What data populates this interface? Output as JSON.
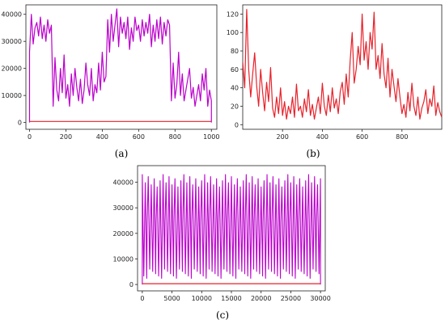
{
  "chart_data": [
    {
      "type": "line",
      "caption": "(a)",
      "xlim": [
        -20,
        1030
      ],
      "ylim": [
        -2500,
        43500
      ],
      "xticks": [
        0,
        200,
        400,
        600,
        800,
        1000
      ],
      "xtick_labels": [
        "0",
        "200",
        "400",
        "600",
        "800",
        "1000"
      ],
      "yticks": [
        0,
        10000,
        20000,
        30000,
        40000
      ],
      "ytick_labels": [
        "0",
        "10000",
        "20000",
        "30000",
        "40000"
      ],
      "grid": false,
      "colors": {
        "main": "#bb00cc",
        "baseline": "#e8212a"
      },
      "series": [
        {
          "color": "#bb00cc",
          "x": [
            0,
            10,
            20,
            30,
            40,
            50,
            60,
            70,
            80,
            90,
            100,
            110,
            120,
            130,
            140,
            150,
            160,
            170,
            180,
            190,
            200,
            210,
            220,
            230,
            240,
            250,
            260,
            270,
            280,
            290,
            300,
            310,
            320,
            330,
            340,
            350,
            360,
            370,
            380,
            390,
            400,
            410,
            420,
            430,
            440,
            450,
            460,
            470,
            480,
            490,
            500,
            510,
            520,
            530,
            540,
            550,
            560,
            570,
            580,
            590,
            600,
            610,
            620,
            630,
            640,
            650,
            660,
            670,
            680,
            690,
            700,
            710,
            720,
            730,
            740,
            750,
            760,
            770,
            780,
            790,
            800,
            810,
            820,
            830,
            840,
            850,
            860,
            870,
            880,
            890,
            900,
            910,
            920,
            930,
            940,
            950,
            960,
            970,
            980,
            990,
            1000
          ],
          "y": [
            26000,
            40000,
            29000,
            35000,
            37000,
            32000,
            39000,
            31000,
            36000,
            30000,
            38000,
            33000,
            36000,
            6000,
            24000,
            12000,
            8000,
            20000,
            11000,
            25000,
            9000,
            14000,
            6000,
            18000,
            10000,
            20000,
            13000,
            8000,
            16000,
            7000,
            12000,
            22000,
            14000,
            10000,
            20000,
            8000,
            14000,
            11000,
            22000,
            12000,
            26000,
            15000,
            17000,
            38000,
            26000,
            40000,
            30000,
            36000,
            42000,
            28000,
            39000,
            33000,
            37000,
            31000,
            39000,
            27000,
            35000,
            30000,
            39000,
            34000,
            36000,
            30000,
            38000,
            32000,
            37000,
            33000,
            40000,
            28000,
            36000,
            30000,
            38000,
            31000,
            39000,
            29000,
            37000,
            32000,
            38000,
            36000,
            8000,
            22000,
            9000,
            14000,
            26000,
            10000,
            18000,
            8000,
            12000,
            16000,
            20000,
            9000,
            13000,
            6000,
            10000,
            14000,
            8000,
            18000,
            12000,
            20000,
            6000,
            12000,
            8000
          ]
        },
        {
          "color": "#e8212a",
          "x": [
            0,
            1000
          ],
          "y": [
            400,
            400
          ]
        }
      ]
    },
    {
      "type": "line",
      "caption": "(b)",
      "xlim": [
        0,
        1000
      ],
      "ylim": [
        -5,
        130
      ],
      "xticks": [
        200,
        400,
        600,
        800
      ],
      "xtick_labels": [
        "200",
        "400",
        "600",
        "800"
      ],
      "yticks": [
        0,
        20,
        40,
        60,
        80,
        100,
        120
      ],
      "ytick_labels": [
        "0",
        "20",
        "40",
        "60",
        "80",
        "100",
        "120"
      ],
      "grid": false,
      "colors": {
        "main": "#e8212a"
      },
      "series": [
        {
          "color": "#e8212a",
          "x": [
            0,
            10,
            20,
            30,
            40,
            50,
            60,
            70,
            80,
            90,
            100,
            110,
            120,
            130,
            140,
            150,
            160,
            170,
            180,
            190,
            200,
            210,
            220,
            230,
            240,
            250,
            260,
            270,
            280,
            290,
            300,
            310,
            320,
            330,
            340,
            350,
            360,
            370,
            380,
            390,
            400,
            410,
            420,
            430,
            440,
            450,
            460,
            470,
            480,
            490,
            500,
            510,
            520,
            530,
            540,
            550,
            560,
            570,
            580,
            590,
            600,
            610,
            620,
            630,
            640,
            650,
            660,
            670,
            680,
            690,
            700,
            710,
            720,
            730,
            740,
            750,
            760,
            770,
            780,
            790,
            800,
            810,
            820,
            830,
            840,
            850,
            860,
            870,
            880,
            890,
            900,
            910,
            920,
            930,
            940,
            950,
            960,
            970,
            980,
            990,
            1000
          ],
          "y": [
            68,
            40,
            125,
            60,
            30,
            55,
            78,
            42,
            20,
            60,
            35,
            15,
            46,
            25,
            62,
            18,
            8,
            30,
            12,
            40,
            10,
            25,
            6,
            20,
            12,
            30,
            8,
            44,
            15,
            20,
            8,
            28,
            14,
            38,
            10,
            22,
            6,
            18,
            30,
            12,
            45,
            20,
            10,
            32,
            14,
            40,
            18,
            28,
            12,
            36,
            46,
            22,
            55,
            30,
            70,
            100,
            45,
            60,
            85,
            65,
            120,
            70,
            90,
            60,
            100,
            82,
            122,
            60,
            75,
            50,
            88,
            55,
            40,
            72,
            30,
            60,
            42,
            25,
            50,
            30,
            12,
            22,
            8,
            35,
            15,
            45,
            20,
            10,
            30,
            6,
            18,
            25,
            38,
            12,
            28,
            20,
            42,
            10,
            24,
            14,
            8
          ]
        }
      ]
    },
    {
      "type": "line",
      "caption": "(c)",
      "xlim": [
        -800,
        30800
      ],
      "ylim": [
        -2500,
        46500
      ],
      "xticks": [
        0,
        5000,
        10000,
        15000,
        20000,
        25000,
        30000
      ],
      "xtick_labels": [
        "0",
        "5000",
        "10000",
        "15000",
        "20000",
        "25000",
        "30000"
      ],
      "yticks": [
        0,
        10000,
        20000,
        30000,
        40000
      ],
      "ytick_labels": [
        "0",
        "10000",
        "20000",
        "30000",
        "40000"
      ],
      "grid": false,
      "colors": {
        "main": "#bb00cc",
        "baseline": "#e8212a"
      },
      "series": [
        {
          "color": "#bb00cc",
          "oscillation": {
            "start": 0,
            "end": 30000,
            "cycles": 60,
            "low": 6000,
            "high": 43000
          },
          "edges": {
            "drop_to": 0
          }
        },
        {
          "color": "#e8212a",
          "x": [
            0,
            30000
          ],
          "y": [
            300,
            300
          ]
        }
      ]
    }
  ]
}
